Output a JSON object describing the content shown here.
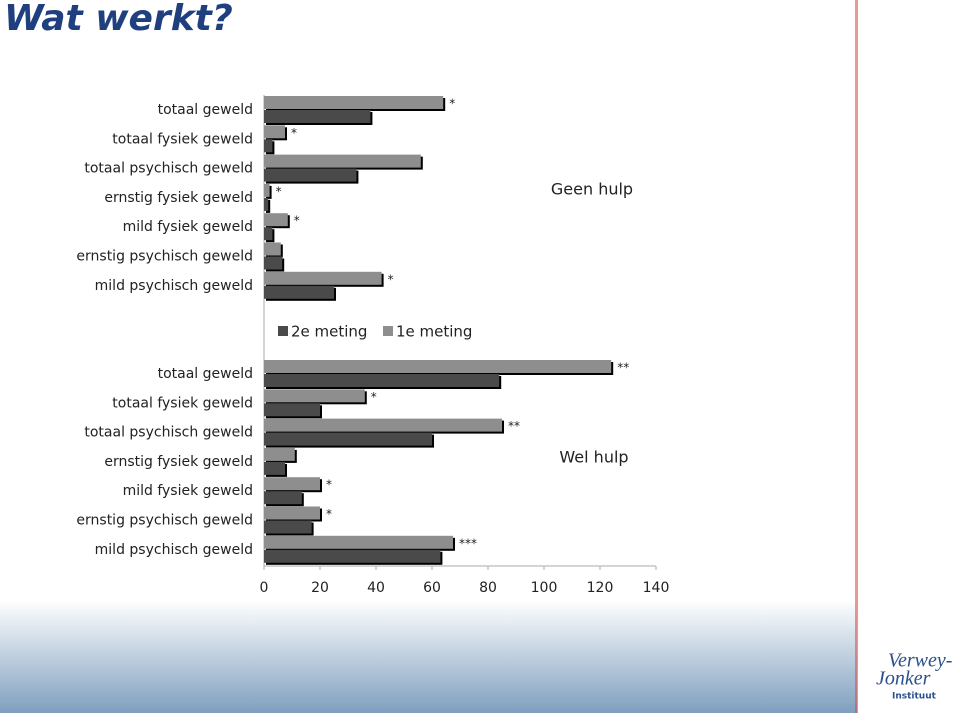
{
  "title": "Wat werkt?",
  "logo": {
    "line1": "Verwey-",
    "line2": "Jonker",
    "line3": "Instituut"
  },
  "chart_data": [
    {
      "type": "bar",
      "orientation": "horizontal",
      "panel_label": "Geen hulp",
      "categories": [
        "totaal geweld",
        "totaal fysiek geweld",
        "totaal psychisch geweld",
        "ernstig fysiek geweld",
        "mild fysiek geweld",
        "ernstig psychisch geweld",
        "mild psychisch geweld"
      ],
      "series": [
        {
          "name": "2e meting",
          "color": "#4a4a4a",
          "values": [
            38,
            3,
            33,
            1.5,
            3,
            6.5,
            25
          ]
        },
        {
          "name": "1e meting",
          "color": "#8e8e8e",
          "values": [
            64,
            7.5,
            56,
            2,
            8.5,
            6,
            42
          ]
        }
      ],
      "annotations": [
        "*",
        "*",
        null,
        "*",
        "*",
        null,
        "*"
      ],
      "xlim": [
        0,
        140
      ]
    },
    {
      "type": "bar",
      "orientation": "horizontal",
      "panel_label": "Wel hulp",
      "categories": [
        "totaal geweld",
        "totaal fysiek geweld",
        "totaal psychisch geweld",
        "ernstig fysiek geweld",
        "mild fysiek geweld",
        "ernstig psychisch geweld",
        "mild psychisch geweld"
      ],
      "series": [
        {
          "color": "#4a4a4a",
          "values": [
            84,
            20,
            60,
            7.5,
            13.5,
            17,
            63
          ]
        },
        {
          "color": "#8e8e8e",
          "values": [
            124,
            36,
            85,
            11,
            20,
            20,
            67.5
          ]
        }
      ],
      "annotations": [
        "**",
        "*",
        "**",
        null,
        "*",
        "*",
        "***"
      ],
      "xlim": [
        0,
        140
      ],
      "xticks": [
        0,
        20,
        40,
        60,
        80,
        100,
        120,
        140
      ]
    }
  ]
}
